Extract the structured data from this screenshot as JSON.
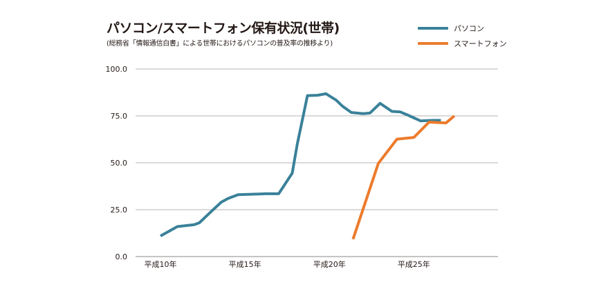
{
  "title": "パソコン/スマートフォン保有状況(世帯)",
  "subtitle": "(総務省「情報通信白書」による世帯におけるパソコンの普及率の推移より)",
  "chart_data": {
    "type": "line",
    "title": "パソコン/スマートフォン保有状況(世帯)",
    "subtitle": "(総務省「情報通信白書」による世帯におけるパソコンの普及率の推移より)",
    "xlabel": "",
    "ylabel": "",
    "ylim": [
      0,
      100
    ],
    "xlim": [
      10,
      29
    ],
    "y_ticks": [
      {
        "value": 0,
        "label": "0.0"
      },
      {
        "value": 25,
        "label": "25.0"
      },
      {
        "value": 50,
        "label": "50.0"
      },
      {
        "value": 75,
        "label": "75.0"
      },
      {
        "value": 100,
        "label": "100.0"
      }
    ],
    "x_ticks": [
      {
        "value": 10,
        "label": "平成10年"
      },
      {
        "value": 15,
        "label": "平成15年"
      },
      {
        "value": 20,
        "label": "平成20年"
      },
      {
        "value": 25,
        "label": "平成25年"
      }
    ],
    "grid": true,
    "legend": "top-right",
    "series": [
      {
        "name": "パソコン",
        "color": "#3a8199",
        "x": [
          10,
          11,
          12,
          12.3,
          13,
          13.6,
          14,
          14.6,
          16.2,
          17,
          17.8,
          18.1,
          18.7,
          19.3,
          19.8,
          20.4,
          20.8,
          21.3,
          22,
          22.4,
          23,
          23.7,
          24.2,
          24.7,
          25.4,
          26.1,
          26.6
        ],
        "values": [
          11,
          16,
          17,
          18,
          24,
          29,
          31,
          33,
          33.5,
          33.5,
          44.5,
          60,
          85.8,
          86,
          86.8,
          83.4,
          80,
          76.8,
          76.2,
          76.5,
          81.7,
          77.4,
          77.1,
          75.2,
          72.3,
          72.6,
          72.6
        ]
      },
      {
        "name": "スマートフォン",
        "color": "#ec7b2c",
        "x": [
          21.4,
          22.9,
          24,
          25,
          25.9,
          26.9,
          27.4
        ],
        "values": [
          9.3,
          49.7,
          62.6,
          63.5,
          71.7,
          71.2,
          75
        ]
      }
    ]
  }
}
